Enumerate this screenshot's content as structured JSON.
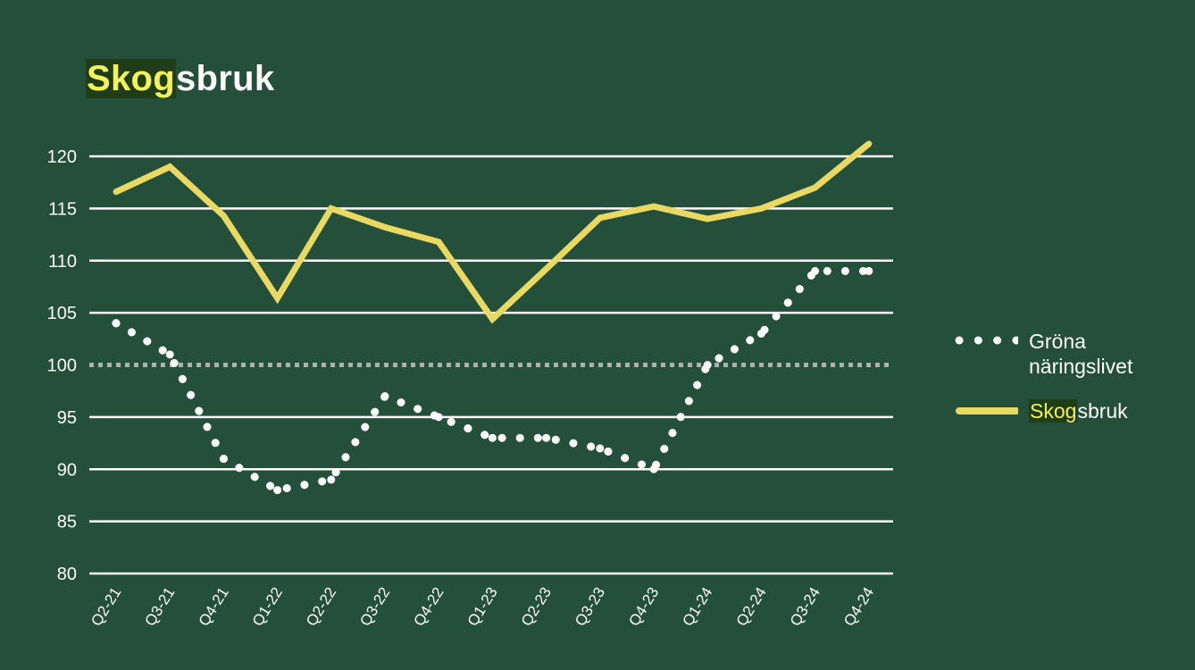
{
  "title": {
    "highlight": "Skog",
    "rest": "sbruk"
  },
  "colors": {
    "background": "#234f3b",
    "series_forest": "#e9d862",
    "series_green": "#ffffff",
    "baseline": "#a9b2ad",
    "highlight_bg": "#1f3d17",
    "highlight_fg": "#f4f15a"
  },
  "legend": {
    "items": [
      {
        "label": "Gröna näringslivet",
        "style": "dotted"
      },
      {
        "label_highlight": "Skog",
        "label_rest": "sbruk",
        "style": "solid"
      }
    ]
  },
  "chart_data": {
    "type": "line",
    "title": "Skogsbruk",
    "xlabel": "",
    "ylabel": "",
    "categories": [
      "Q2-21",
      "Q3-21",
      "Q4-21",
      "Q1-22",
      "Q2-22",
      "Q3-22",
      "Q4-22",
      "Q1-23",
      "Q2-23",
      "Q3-23",
      "Q4-23",
      "Q1-24",
      "Q2-24",
      "Q3-24",
      "Q4-24"
    ],
    "ylim": [
      80,
      120
    ],
    "yticks": [
      80,
      85,
      90,
      95,
      100,
      105,
      110,
      115,
      120
    ],
    "grid": true,
    "reference_line": {
      "value": 100,
      "style": "dotted"
    },
    "legend_position": "right",
    "series": [
      {
        "name": "Gröna näringslivet",
        "style": "dotted",
        "values": [
          104,
          101,
          91,
          88,
          89,
          97,
          95,
          93,
          93,
          92,
          90,
          100,
          103,
          109,
          109
        ]
      },
      {
        "name": "Skogsbruk",
        "style": "solid",
        "values": [
          116.6,
          119,
          114.3,
          106.4,
          115,
          113.2,
          111.8,
          104.4,
          109.2,
          114.1,
          115.2,
          114,
          115,
          117,
          121.2
        ]
      }
    ]
  }
}
